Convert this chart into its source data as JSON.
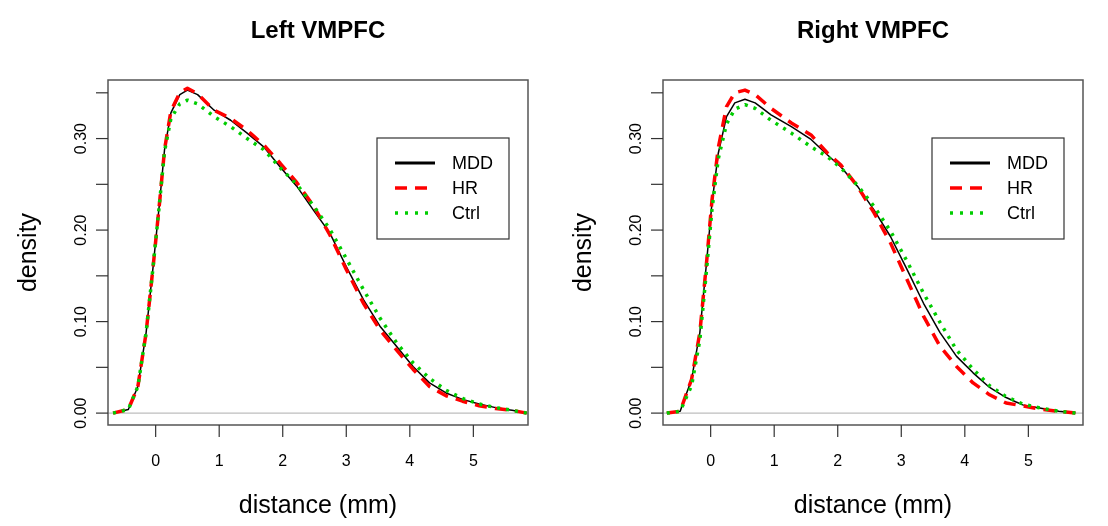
{
  "chart_data": [
    {
      "type": "line",
      "title": "Left VMPFC",
      "xlabel": "distance (mm)",
      "ylabel": "density",
      "x": [
        -0.67,
        -0.43,
        -0.28,
        -0.15,
        -0.04,
        0.06,
        0.14,
        0.24,
        0.38,
        0.5,
        0.66,
        0.92,
        1.18,
        1.44,
        1.7,
        1.96,
        2.22,
        2.48,
        2.74,
        3.0,
        3.27,
        3.53,
        3.79,
        4.05,
        4.31,
        4.57,
        4.83,
        5.09,
        5.35,
        5.61,
        5.84
      ],
      "series": [
        {
          "name": "MDD",
          "color": "#000000",
          "line_style": "solid",
          "values": [
            0,
            0.004,
            0.029,
            0.088,
            0.16,
            0.229,
            0.288,
            0.328,
            0.348,
            0.353,
            0.348,
            0.331,
            0.32,
            0.306,
            0.291,
            0.269,
            0.248,
            0.222,
            0.197,
            0.16,
            0.124,
            0.095,
            0.073,
            0.051,
            0.033,
            0.022,
            0.015,
            0.01,
            0.006,
            0.003,
            0
          ]
        },
        {
          "name": "HR",
          "color": "#ff0000",
          "line_style": "dashed",
          "values": [
            0,
            0.004,
            0.029,
            0.088,
            0.16,
            0.229,
            0.288,
            0.33,
            0.35,
            0.355,
            0.349,
            0.331,
            0.322,
            0.309,
            0.293,
            0.273,
            0.252,
            0.227,
            0.195,
            0.157,
            0.12,
            0.091,
            0.069,
            0.048,
            0.029,
            0.019,
            0.013,
            0.008,
            0.005,
            0.003,
            0
          ]
        },
        {
          "name": "Ctrl",
          "color": "#00cd00",
          "line_style": "dotted",
          "values": [
            0,
            0.004,
            0.029,
            0.088,
            0.16,
            0.229,
            0.286,
            0.322,
            0.338,
            0.342,
            0.338,
            0.324,
            0.313,
            0.3,
            0.288,
            0.268,
            0.25,
            0.227,
            0.201,
            0.169,
            0.135,
            0.104,
            0.077,
            0.055,
            0.038,
            0.025,
            0.016,
            0.01,
            0.006,
            0.003,
            0
          ]
        }
      ],
      "xlim": [
        -0.75,
        5.86
      ],
      "ylim": [
        -0.013,
        0.364
      ],
      "xticks": [
        0,
        1,
        2,
        3,
        4,
        5
      ],
      "yticks": [
        {
          "value": 0,
          "label": "0.00"
        },
        {
          "value": 0.05,
          "label": null
        },
        {
          "value": 0.1,
          "label": "0.10"
        },
        {
          "value": 0.15,
          "label": null
        },
        {
          "value": 0.2,
          "label": "0.20"
        },
        {
          "value": 0.25,
          "label": null
        },
        {
          "value": 0.3,
          "label": "0.30"
        },
        {
          "value": 0.35,
          "label": null
        }
      ],
      "ref_lines": [
        {
          "axis": "y",
          "value": 0,
          "color": "#bebebe"
        }
      ],
      "legend": "top right",
      "grid": false
    },
    {
      "type": "line",
      "title": "Right VMPFC",
      "xlabel": "distance (mm)",
      "ylabel": "density",
      "x": [
        -0.69,
        -0.48,
        -0.3,
        -0.17,
        -0.06,
        0.02,
        0.12,
        0.25,
        0.38,
        0.54,
        0.7,
        0.95,
        1.27,
        1.58,
        1.84,
        2.05,
        2.31,
        2.57,
        2.83,
        3.09,
        3.35,
        3.61,
        3.87,
        4.13,
        4.39,
        4.65,
        4.91,
        5.22,
        5.48,
        5.74
      ],
      "series": [
        {
          "name": "MDD",
          "color": "#000000",
          "line_style": "solid",
          "values": [
            0,
            0.002,
            0.037,
            0.088,
            0.168,
            0.229,
            0.284,
            0.324,
            0.339,
            0.343,
            0.339,
            0.326,
            0.313,
            0.299,
            0.282,
            0.269,
            0.248,
            0.222,
            0.193,
            0.157,
            0.12,
            0.088,
            0.062,
            0.044,
            0.028,
            0.017,
            0.009,
            0.005,
            0.002,
            0
          ]
        },
        {
          "name": "HR",
          "color": "#ff0000",
          "line_style": "dashed",
          "values": [
            0,
            0.002,
            0.037,
            0.088,
            0.168,
            0.232,
            0.29,
            0.335,
            0.35,
            0.353,
            0.348,
            0.333,
            0.317,
            0.304,
            0.284,
            0.271,
            0.248,
            0.219,
            0.186,
            0.146,
            0.106,
            0.073,
            0.051,
            0.033,
            0.02,
            0.011,
            0.008,
            0.004,
            0.002,
            0
          ]
        },
        {
          "name": "Ctrl",
          "color": "#00cd00",
          "line_style": "dotted",
          "values": [
            0,
            0.002,
            0.03,
            0.08,
            0.16,
            0.222,
            0.278,
            0.316,
            0.332,
            0.337,
            0.333,
            0.32,
            0.306,
            0.291,
            0.28,
            0.268,
            0.249,
            0.226,
            0.199,
            0.166,
            0.131,
            0.099,
            0.069,
            0.048,
            0.03,
            0.018,
            0.01,
            0.005,
            0.002,
            0
          ]
        }
      ],
      "xlim": [
        -0.75,
        5.86
      ],
      "ylim": [
        -0.013,
        0.364
      ],
      "xticks": [
        0,
        1,
        2,
        3,
        4,
        5
      ],
      "yticks": [
        {
          "value": 0,
          "label": "0.00"
        },
        {
          "value": 0.05,
          "label": null
        },
        {
          "value": 0.1,
          "label": "0.10"
        },
        {
          "value": 0.15,
          "label": null
        },
        {
          "value": 0.2,
          "label": "0.20"
        },
        {
          "value": 0.25,
          "label": null
        },
        {
          "value": 0.3,
          "label": "0.30"
        },
        {
          "value": 0.35,
          "label": null
        }
      ],
      "ref_lines": [
        {
          "axis": "y",
          "value": 0,
          "color": "#bebebe"
        }
      ],
      "legend": "top right",
      "grid": false
    }
  ]
}
